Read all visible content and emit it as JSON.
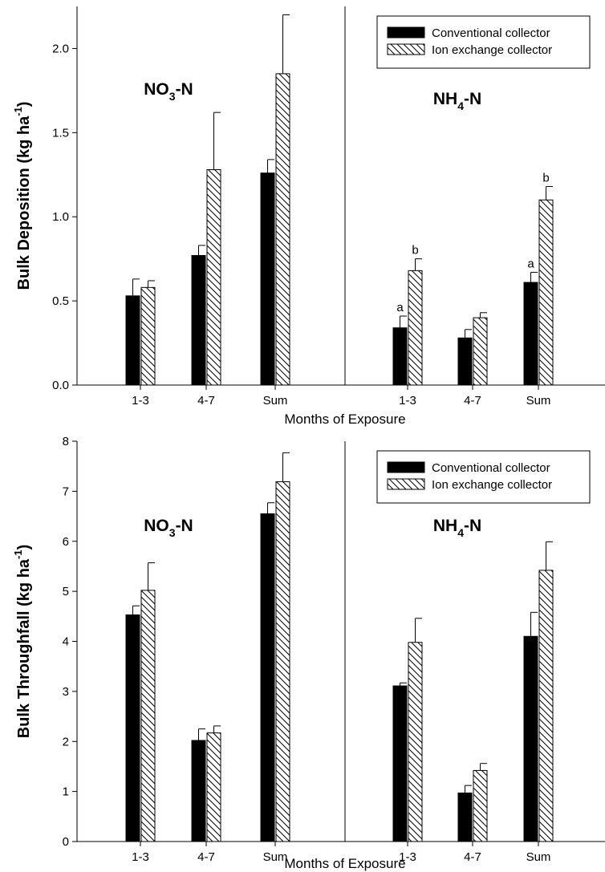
{
  "figure": {
    "shared_ticks": [
      "1-3",
      "4-7",
      "Sum",
      "1-3",
      "4-7",
      "Sum"
    ]
  },
  "chart_data": [
    {
      "type": "bar",
      "xlabel": "Months of Exposure",
      "ylabel": "Bulk Deposition (kg ha",
      "ylabel_sup": "-1",
      "ylabel_close": ")",
      "ylim": [
        0,
        2.25
      ],
      "yticks": [
        "0.0",
        "0.5",
        "1.0",
        "1.5",
        "2.0"
      ],
      "ytick_values": [
        0,
        0.5,
        1.0,
        1.5,
        2.0
      ],
      "legend_position": "top-right",
      "groups": [
        {
          "label": "NO",
          "label_sub": "3",
          "label_rest": "-N",
          "categories": [
            "1-3",
            "4-7",
            "Sum"
          ]
        },
        {
          "label": "NH",
          "label_sub": "4",
          "label_rest": "-N",
          "categories": [
            "1-3",
            "4-7",
            "Sum"
          ]
        }
      ],
      "series": [
        {
          "name": "Conventional collector",
          "fill": "solid",
          "color": "#000000",
          "values": [
            0.53,
            0.77,
            1.26,
            0.34,
            0.28,
            0.61
          ],
          "errors": [
            0.1,
            0.06,
            0.08,
            0.07,
            0.05,
            0.06
          ],
          "sig_letters": [
            "",
            "",
            "",
            "a",
            "",
            "a"
          ]
        },
        {
          "name": "Ion exchange collector",
          "fill": "hatched",
          "color": "#000000",
          "values": [
            0.58,
            1.28,
            1.85,
            0.68,
            0.4,
            1.1
          ],
          "errors": [
            0.04,
            0.34,
            0.35,
            0.07,
            0.03,
            0.08
          ],
          "sig_letters": [
            "",
            "",
            "",
            "b",
            "",
            "b"
          ]
        }
      ]
    },
    {
      "type": "bar",
      "xlabel": "Months of Exposure",
      "ylabel": "Bulk Throughfall (kg ha",
      "ylabel_sup": "-1",
      "ylabel_close": ")",
      "ylim": [
        0,
        8
      ],
      "yticks": [
        "0",
        "1",
        "2",
        "3",
        "4",
        "5",
        "6",
        "7",
        "8"
      ],
      "ytick_values": [
        0,
        1,
        2,
        3,
        4,
        5,
        6,
        7,
        8
      ],
      "legend_position": "top-right",
      "groups": [
        {
          "label": "NO",
          "label_sub": "3",
          "label_rest": "-N",
          "categories": [
            "1-3",
            "4-7",
            "Sum"
          ]
        },
        {
          "label": "NH",
          "label_sub": "4",
          "label_rest": "-N",
          "categories": [
            "1-3",
            "4-7",
            "Sum"
          ]
        }
      ],
      "series": [
        {
          "name": "Conventional collector",
          "fill": "solid",
          "color": "#000000",
          "values": [
            4.53,
            2.02,
            6.55,
            3.11,
            0.97,
            4.1
          ],
          "errors": [
            0.18,
            0.23,
            0.22,
            0.06,
            0.15,
            0.48
          ],
          "sig_letters": [
            "",
            "",
            "",
            "",
            "",
            ""
          ]
        },
        {
          "name": "Ion exchange collector",
          "fill": "hatched",
          "color": "#000000",
          "values": [
            5.02,
            2.17,
            7.19,
            3.98,
            1.42,
            5.42
          ],
          "errors": [
            0.55,
            0.14,
            0.58,
            0.48,
            0.14,
            0.57
          ],
          "sig_letters": [
            "",
            "",
            "",
            "",
            "",
            ""
          ]
        }
      ]
    }
  ]
}
